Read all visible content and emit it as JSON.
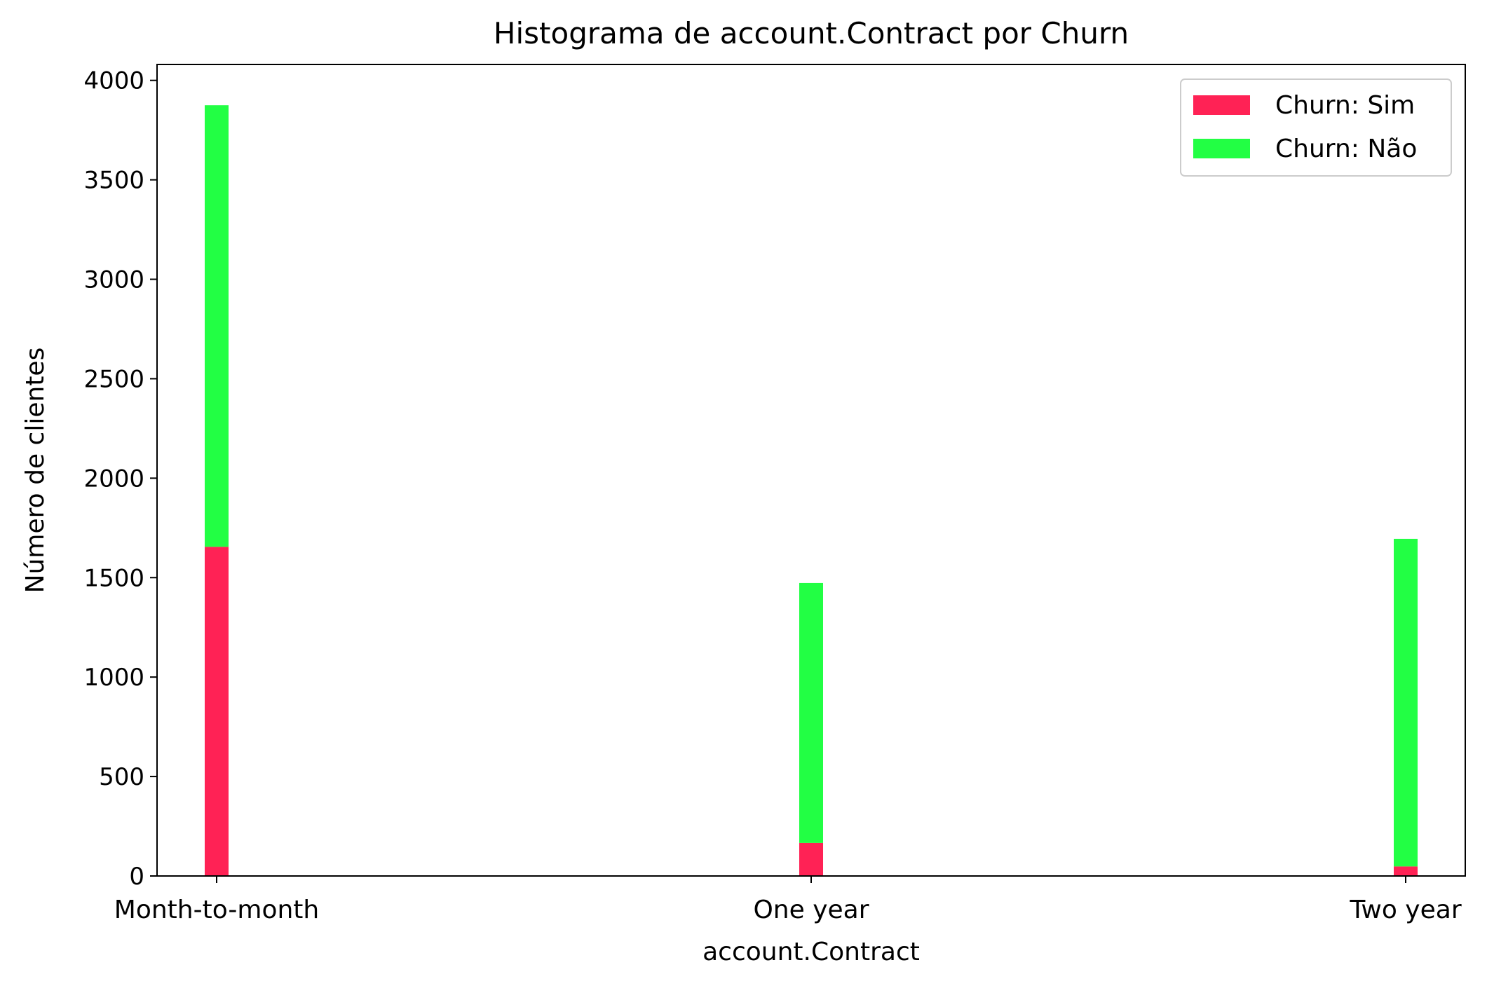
{
  "chart_data": {
    "type": "bar",
    "stacked": true,
    "title": "Histograma de account.Contract por Churn",
    "xlabel": "account.Contract",
    "ylabel": "Número de clientes",
    "categories": [
      "Month-to-month",
      "One year",
      "Two year"
    ],
    "series": [
      {
        "name": "Churn: Sim",
        "values": [
          1655,
          166,
          48
        ],
        "color": "#ff2255"
      },
      {
        "name": "Churn: Não",
        "values": [
          2220,
          1307,
          1647
        ],
        "color": "#22ff44"
      }
    ],
    "ylim": [
      0,
      4080
    ],
    "yticks": [
      0,
      500,
      1000,
      1500,
      2000,
      2500,
      3000,
      3500,
      4000
    ],
    "grid": false,
    "legend": "top-right"
  }
}
